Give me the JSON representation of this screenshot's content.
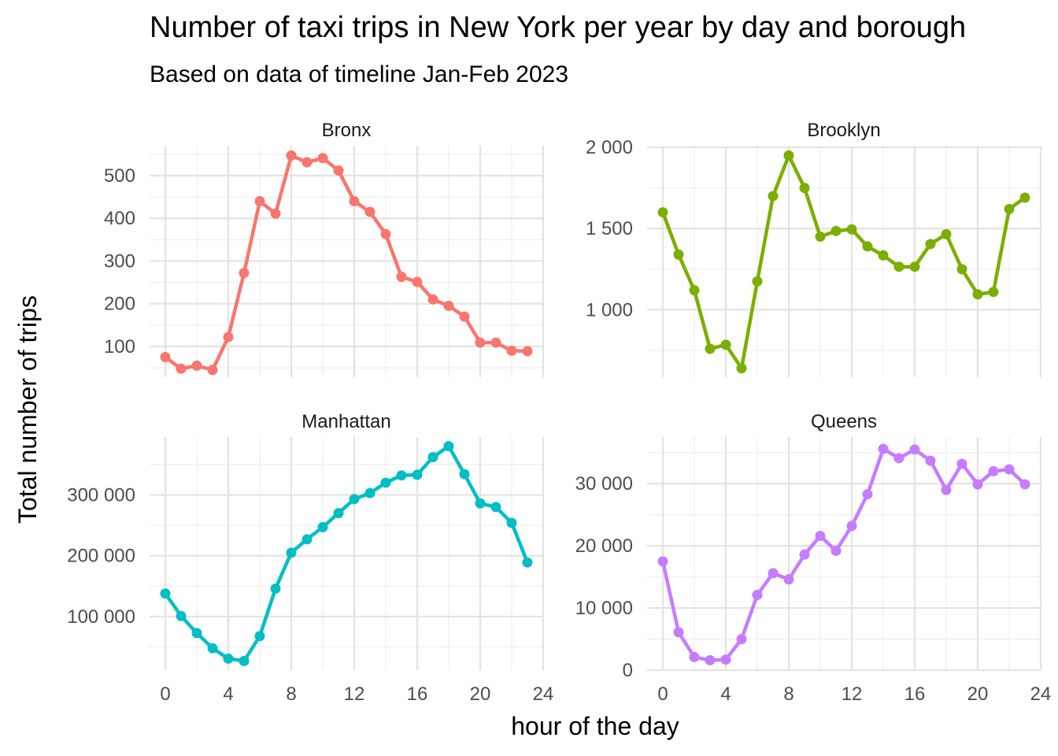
{
  "chart_data": {
    "type": "line",
    "title": "Number of taxi trips in New York per year by day and borough",
    "subtitle": "Based on data of timeline Jan-Feb 2023",
    "xlabel": "hour of the day",
    "ylabel": "Total number of trips",
    "grid": true,
    "legend": "none",
    "x": [
      0,
      1,
      2,
      3,
      4,
      5,
      6,
      7,
      8,
      9,
      10,
      11,
      12,
      13,
      14,
      15,
      16,
      17,
      18,
      19,
      20,
      21,
      22,
      23
    ],
    "xlim": [
      -1,
      24
    ],
    "x_ticks": [
      0,
      4,
      8,
      12,
      16,
      20,
      24
    ],
    "x_tick_labels": [
      "0",
      "4",
      "8",
      "12",
      "16",
      "20",
      "24"
    ],
    "facets": [
      {
        "name": "Bronx",
        "color": "#F8766D",
        "ylim": [
          28,
          570
        ],
        "y_ticks": [
          100,
          200,
          300,
          400,
          500
        ],
        "y_tick_labels": [
          "100",
          "200",
          "300",
          "400",
          "500"
        ],
        "values": [
          75,
          48,
          55,
          45,
          122,
          272,
          440,
          411,
          547,
          531,
          541,
          512,
          440,
          415,
          363,
          263,
          251,
          210,
          195,
          170,
          109,
          109,
          90,
          89
        ]
      },
      {
        "name": "Brooklyn",
        "color": "#7CAE00",
        "ylim": [
          585,
          2010
        ],
        "y_ticks": [
          1000,
          1500,
          2000
        ],
        "y_tick_labels": [
          "1 000",
          "1 500",
          "2 000"
        ],
        "values": [
          1600,
          1340,
          1120,
          760,
          785,
          640,
          1175,
          1700,
          1950,
          1750,
          1450,
          1485,
          1495,
          1390,
          1335,
          1265,
          1265,
          1405,
          1465,
          1250,
          1095,
          1110,
          1620,
          1690
        ]
      },
      {
        "name": "Manhattan",
        "color": "#00BFC4",
        "ylim": [
          12000,
          395000
        ],
        "y_ticks": [
          100000,
          200000,
          300000
        ],
        "y_tick_labels": [
          "100 000",
          "200 000",
          "300 000"
        ],
        "values": [
          138000,
          101000,
          73000,
          48000,
          31000,
          27000,
          68000,
          146000,
          205000,
          227000,
          247000,
          270000,
          293000,
          303000,
          320000,
          332000,
          333000,
          362000,
          380000,
          334000,
          286000,
          280000,
          254000,
          189000
        ]
      },
      {
        "name": "Queens",
        "color": "#C77CFF",
        "ylim": [
          0,
          37500
        ],
        "y_ticks": [
          0,
          10000,
          20000,
          30000
        ],
        "y_tick_labels": [
          "0",
          "10 000",
          "20 000",
          "30 000"
        ],
        "values": [
          17500,
          6100,
          2100,
          1600,
          1700,
          5000,
          12100,
          15600,
          14600,
          18600,
          21600,
          19200,
          23200,
          28300,
          35600,
          34100,
          35500,
          33700,
          29000,
          33200,
          29900,
          32000,
          32300,
          29900
        ]
      }
    ]
  }
}
